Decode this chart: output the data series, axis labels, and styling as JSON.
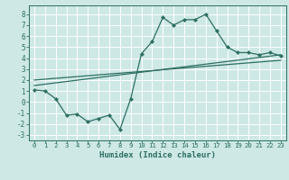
{
  "xlabel": "Humidex (Indice chaleur)",
  "background_color": "#cde8e5",
  "grid_color": "#ffffff",
  "line_color": "#2d6e63",
  "xlim": [
    -0.5,
    23.5
  ],
  "ylim": [
    -3.5,
    8.8
  ],
  "xticks": [
    0,
    1,
    2,
    3,
    4,
    5,
    6,
    7,
    8,
    9,
    10,
    11,
    12,
    13,
    14,
    15,
    16,
    17,
    18,
    19,
    20,
    21,
    22,
    23
  ],
  "yticks": [
    -3,
    -2,
    -1,
    0,
    1,
    2,
    3,
    4,
    5,
    6,
    7,
    8
  ],
  "line1_x": [
    0,
    1,
    2,
    3,
    4,
    5,
    6,
    7,
    8,
    9,
    10,
    11,
    12,
    13,
    14,
    15,
    16,
    17,
    18,
    19,
    20,
    21,
    22,
    23
  ],
  "line1_y": [
    1.1,
    1.0,
    0.3,
    -1.2,
    -1.1,
    -1.8,
    -1.5,
    -1.2,
    -2.5,
    0.3,
    4.4,
    5.5,
    7.7,
    7.0,
    7.5,
    7.5,
    8.0,
    6.5,
    5.0,
    4.5,
    4.5,
    4.3,
    4.5,
    4.2
  ],
  "line2_x": [
    0,
    23
  ],
  "line2_y": [
    1.5,
    4.3
  ],
  "line3_x": [
    0,
    23
  ],
  "line3_y": [
    2.0,
    3.8
  ]
}
